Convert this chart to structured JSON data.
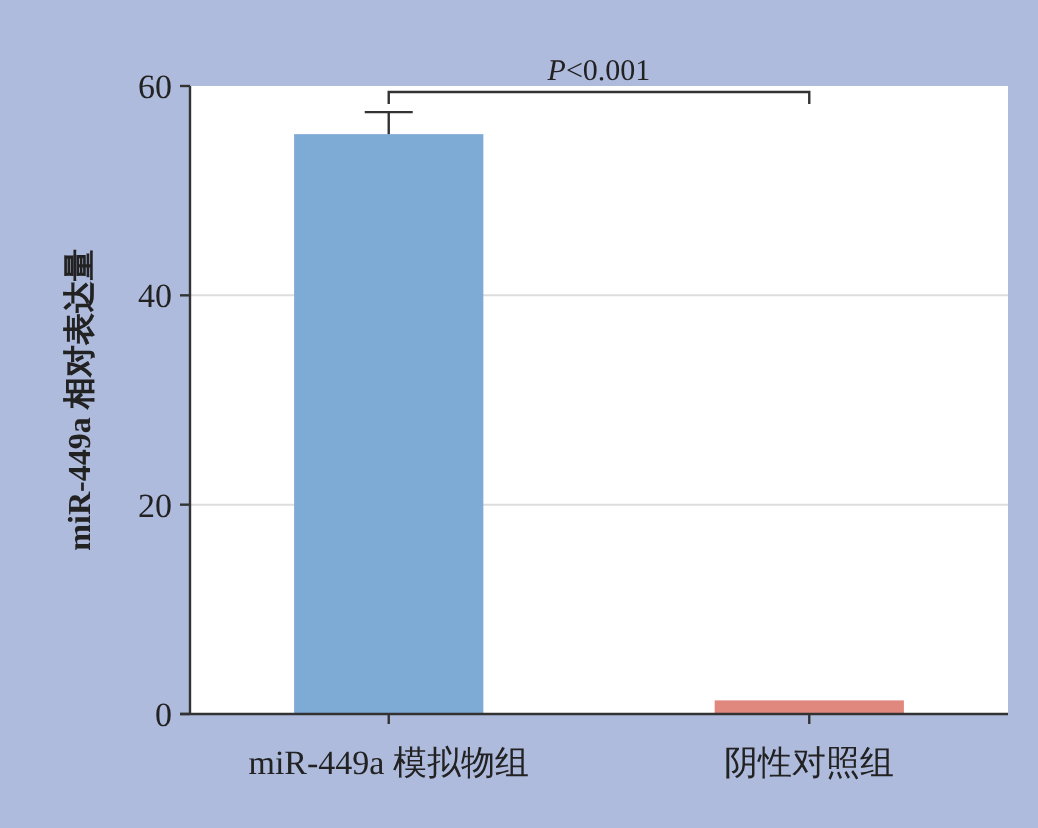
{
  "chart_data": {
    "type": "bar",
    "ylabel": "miR-449a 相对表达量",
    "categories": [
      "miR-449a 模拟物组",
      "阴性对照组"
    ],
    "values": [
      55.4,
      1.3
    ],
    "colors": [
      "#7eaad6",
      "#e0887e"
    ],
    "errors": [
      2.1,
      null
    ],
    "ylim": [
      0,
      60
    ],
    "yticks": [
      0,
      20,
      40,
      60
    ],
    "grid": "y",
    "annotations": [
      "P<0.001"
    ]
  }
}
